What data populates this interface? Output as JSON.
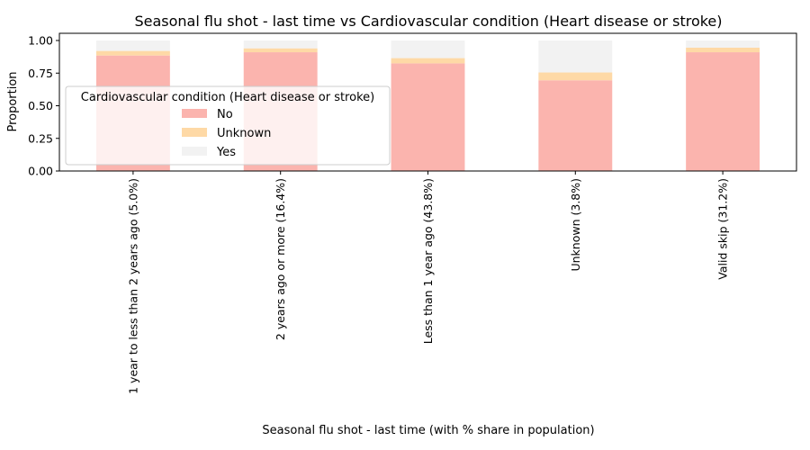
{
  "chart_data": {
    "type": "bar",
    "stacked": true,
    "title": "Seasonal flu shot - last time vs Cardiovascular condition (Heart disease or stroke)",
    "xlabel": "Seasonal flu shot - last time (with % share in population)",
    "ylabel": "Proportion",
    "ylim": [
      0,
      1.0
    ],
    "yticks": [
      "0.00",
      "0.25",
      "0.50",
      "0.75",
      "1.00"
    ],
    "grid": false,
    "categories": [
      "1 year to less than 2 years ago (5.0%)",
      "2 years ago or more (16.4%)",
      "Less than 1 year ago (43.8%)",
      "Unknown (3.8%)",
      "Valid skip (31.2%)"
    ],
    "series": [
      {
        "name": "No",
        "color": "#fbb4ae",
        "values": [
          0.885,
          0.91,
          0.825,
          0.695,
          0.91
        ]
      },
      {
        "name": "Unknown",
        "color": "#fed9a6",
        "values": [
          0.035,
          0.03,
          0.04,
          0.06,
          0.035
        ]
      },
      {
        "name": "Yes",
        "color": "#f2f2f2",
        "values": [
          0.08,
          0.06,
          0.135,
          0.245,
          0.055
        ]
      }
    ],
    "legend": {
      "title": "Cardiovascular condition (Heart disease or stroke)",
      "placement": "center-left"
    }
  }
}
